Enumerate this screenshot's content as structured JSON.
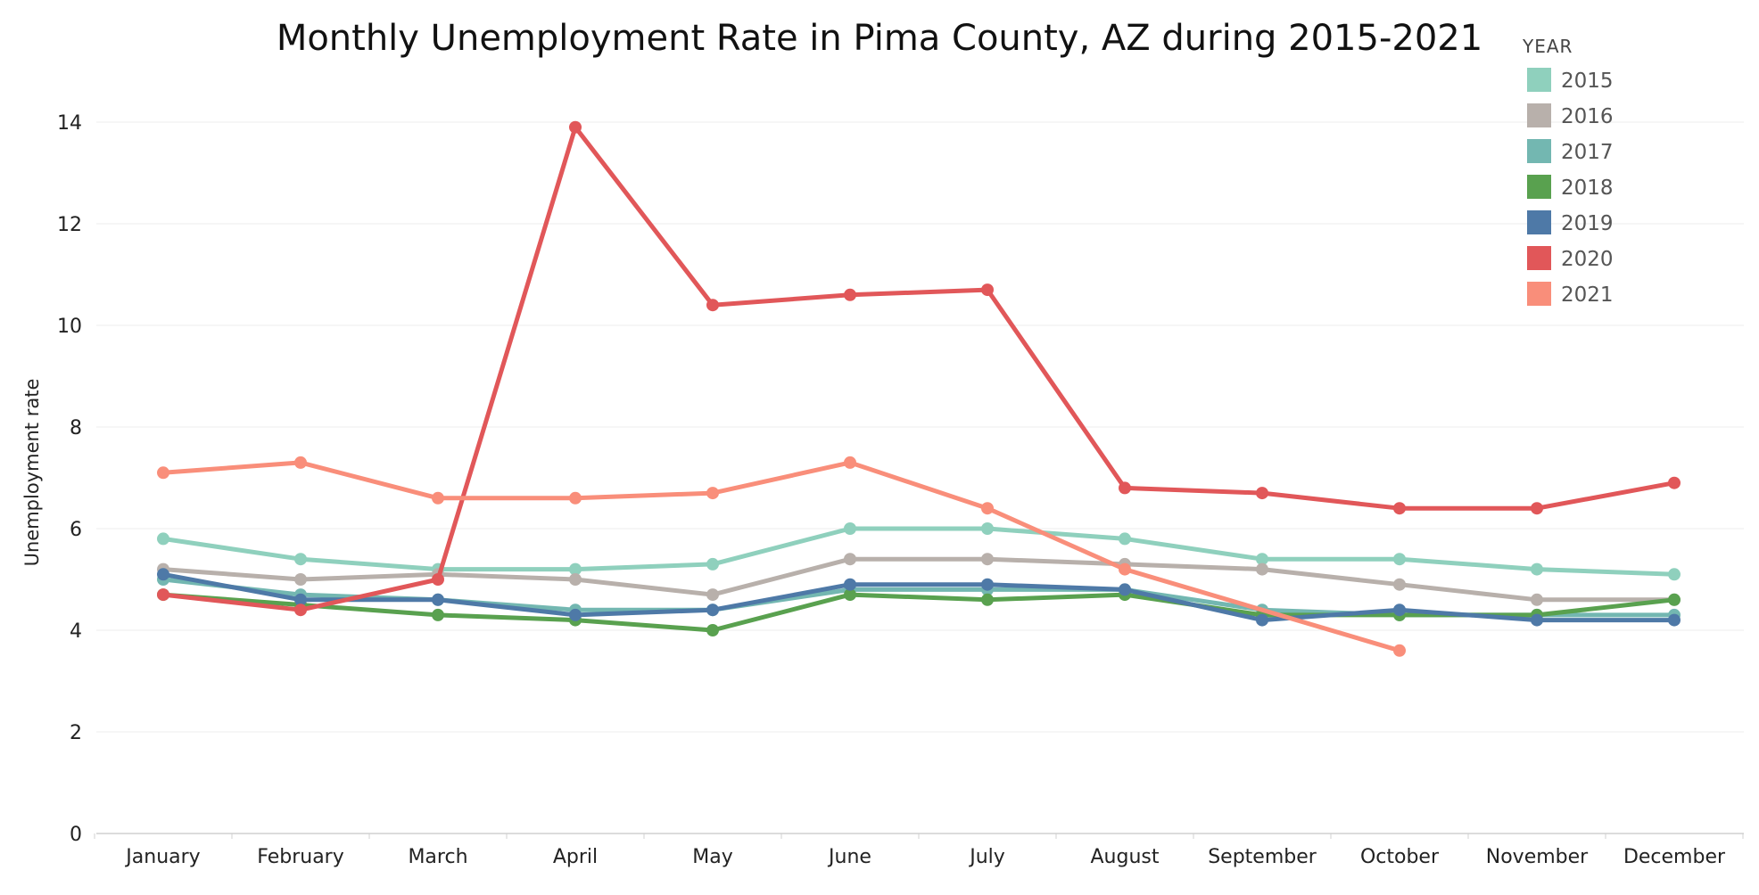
{
  "chart_data": {
    "type": "line",
    "title": "Monthly Unemployment Rate in Pima County, AZ during 2015-2021",
    "xlabel": "",
    "ylabel": "Unemployment rate",
    "ylim": [
      0,
      14.5
    ],
    "yticks": [
      0,
      2,
      4,
      6,
      8,
      10,
      12,
      14
    ],
    "grid": true,
    "legend_title": "YEAR",
    "legend_position": "top-right",
    "categories": [
      "January",
      "February",
      "March",
      "April",
      "May",
      "June",
      "July",
      "August",
      "September",
      "October",
      "November",
      "December"
    ],
    "series": [
      {
        "name": "2015",
        "color": "#8fd0bd",
        "values": [
          5.8,
          5.4,
          5.2,
          5.2,
          5.3,
          6.0,
          6.0,
          5.8,
          5.4,
          5.4,
          5.2,
          5.1
        ]
      },
      {
        "name": "2016",
        "color": "#b8b0ab",
        "values": [
          5.2,
          5.0,
          5.1,
          5.0,
          4.7,
          5.4,
          5.4,
          5.3,
          5.2,
          4.9,
          4.6,
          4.6
        ]
      },
      {
        "name": "2017",
        "color": "#73b7b1",
        "values": [
          5.0,
          4.7,
          4.6,
          4.4,
          4.4,
          4.8,
          4.8,
          4.8,
          4.4,
          4.3,
          4.3,
          4.3
        ]
      },
      {
        "name": "2018",
        "color": "#59a14f",
        "values": [
          4.7,
          4.5,
          4.3,
          4.2,
          4.0,
          4.7,
          4.6,
          4.7,
          4.3,
          4.3,
          4.3,
          4.6
        ]
      },
      {
        "name": "2019",
        "color": "#4e79a7",
        "values": [
          5.1,
          4.6,
          4.6,
          4.3,
          4.4,
          4.9,
          4.9,
          4.8,
          4.2,
          4.4,
          4.2,
          4.2
        ]
      },
      {
        "name": "2020",
        "color": "#e15759",
        "values": [
          4.7,
          4.4,
          5.0,
          13.9,
          10.4,
          10.6,
          10.7,
          6.8,
          6.7,
          6.4,
          6.4,
          6.9
        ]
      },
      {
        "name": "2021",
        "color": "#f98e7a",
        "values": [
          7.1,
          7.3,
          6.6,
          6.6,
          6.7,
          7.3,
          6.4,
          5.2,
          null,
          3.6,
          null,
          null
        ]
      }
    ]
  }
}
